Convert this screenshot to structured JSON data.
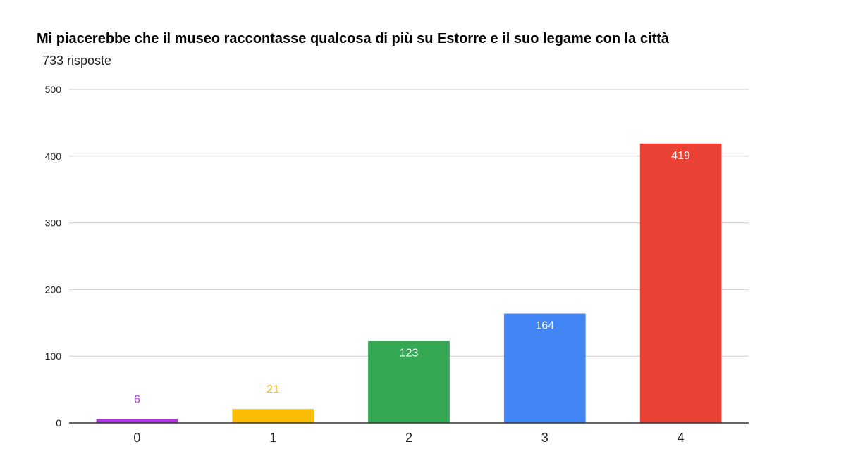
{
  "chart_data": {
    "type": "bar",
    "title": "Mi piacerebbe che il museo raccontasse qualcosa di più su Estorre e il suo legame con la città",
    "subtitle": "733 risposte",
    "categories": [
      "0",
      "1",
      "2",
      "3",
      "4"
    ],
    "values": [
      6,
      21,
      123,
      164,
      419
    ],
    "colors": [
      "#b036e0",
      "#fbbc04",
      "#34a853",
      "#4285f4",
      "#ea4335"
    ],
    "data_labels": [
      "6",
      "21",
      "123",
      "164",
      "419"
    ],
    "ylim": [
      0,
      500
    ],
    "yticks": [
      "0",
      "100",
      "200",
      "300",
      "400",
      "500"
    ],
    "xlabel": "",
    "ylabel": "",
    "grid": true,
    "legend": "none"
  }
}
